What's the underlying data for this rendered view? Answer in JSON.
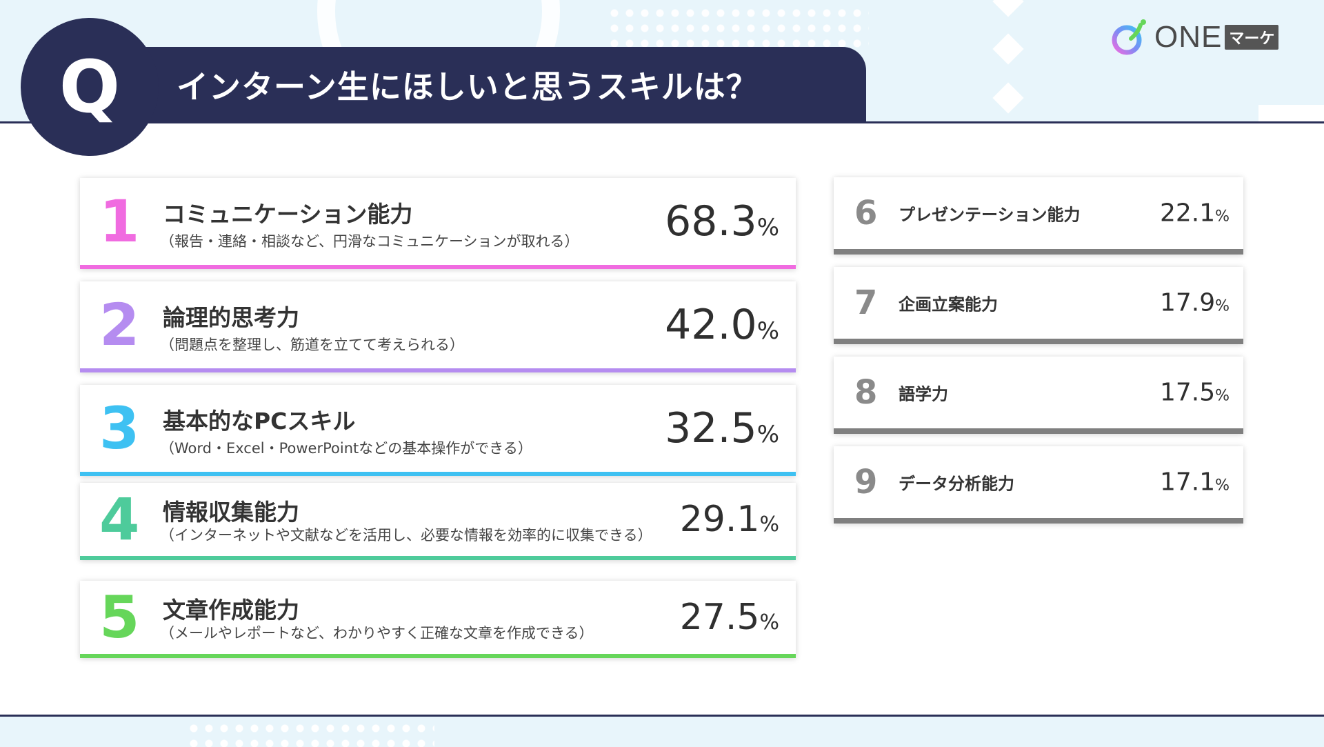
{
  "header": {
    "q_letter": "Q",
    "title": "インターン生にほしいと思うスキルは？"
  },
  "logo": {
    "text": "ONE",
    "badge": "マーケ",
    "icon": "one-marke-logo-mark"
  },
  "colors": {
    "navy": "#2a2f57",
    "rank1": "#f06be0",
    "rank2": "#b58cf0",
    "rank3": "#3ec1f2",
    "rank4": "#4ecb9b",
    "rank5": "#66d65a",
    "rank_rest": "#8a8a8a"
  },
  "chart_data": {
    "type": "table",
    "title": "インターン生にほしいと思うスキルは？",
    "unit": "%",
    "rows": [
      {
        "rank": "1",
        "name": "コミュニケーション能力",
        "description": "（報告・連絡・相談など、円滑なコミュニケーションが取れる）",
        "value": 68.3,
        "value_text": "68.3",
        "color": "#f06be0"
      },
      {
        "rank": "2",
        "name": "論理的思考力",
        "description": "（問題点を整理し、筋道を立てて考えられる）",
        "value": 42.0,
        "value_text": "42.0",
        "color": "#b58cf0"
      },
      {
        "rank": "3",
        "name": "基本的なPCスキル",
        "description": "（Word・Excel・PowerPointなどの基本操作ができる）",
        "value": 32.5,
        "value_text": "32.5",
        "color": "#3ec1f2"
      },
      {
        "rank": "4",
        "name": "情報収集能力",
        "description": "（インターネットや文献などを活用し、必要な情報を効率的に収集できる）",
        "value": 29.1,
        "value_text": "29.1",
        "color": "#4ecb9b"
      },
      {
        "rank": "5",
        "name": "文章作成能力",
        "description": "（メールやレポートなど、わかりやすく正確な文章を作成できる）",
        "value": 27.5,
        "value_text": "27.5",
        "color": "#66d65a"
      },
      {
        "rank": "6",
        "name": "プレゼンテーション能力",
        "value": 22.1,
        "value_text": "22.1"
      },
      {
        "rank": "7",
        "name": "企画立案能力",
        "value": 17.9,
        "value_text": "17.9"
      },
      {
        "rank": "8",
        "name": "語学力",
        "value": 17.5,
        "value_text": "17.5"
      },
      {
        "rank": "9",
        "name": "データ分析能力",
        "value": 17.1,
        "value_text": "17.1"
      }
    ]
  }
}
